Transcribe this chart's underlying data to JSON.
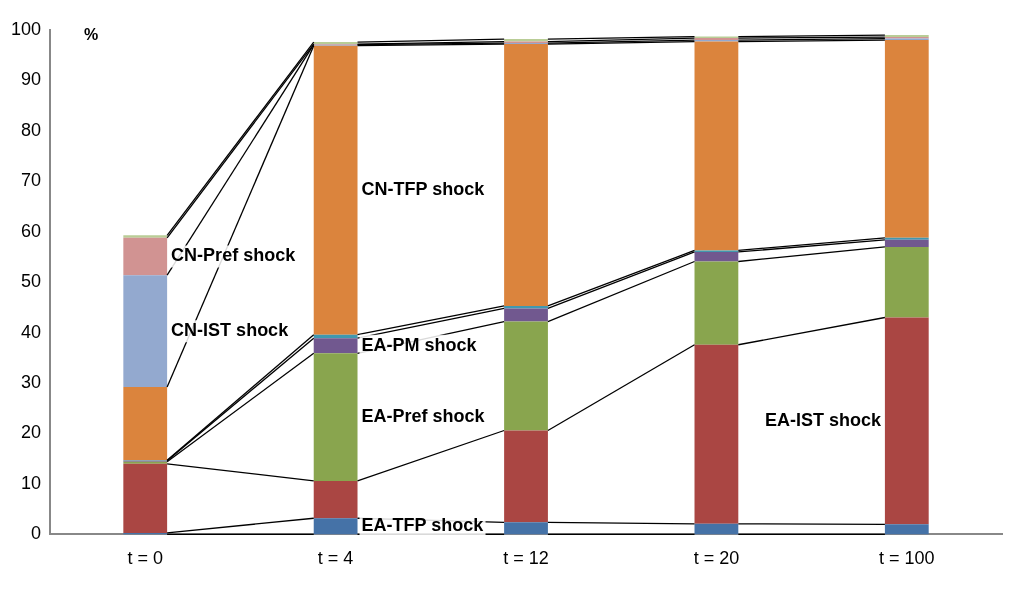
{
  "chart_data": {
    "type": "bar",
    "stacked": true,
    "ylabel": "%",
    "categories": [
      "t = 0",
      "t = 4",
      "t = 12",
      "t = 20",
      "t = 100"
    ],
    "ylim": [
      0,
      100
    ],
    "yticks": [
      0,
      10,
      20,
      30,
      40,
      50,
      60,
      70,
      80,
      90,
      100
    ],
    "grid": false,
    "legend": false,
    "series": [
      {
        "name": "EA-TFP shock",
        "color": "#4572a7",
        "values": [
          0.3,
          3.2,
          2.4,
          2.1,
          2.0
        ]
      },
      {
        "name": "EA-IST shock",
        "color": "#aa4643",
        "values": [
          13.7,
          7.4,
          18.2,
          35.5,
          41.0
        ]
      },
      {
        "name": "EA-Pref shock",
        "color": "#89a54e",
        "values": [
          0.4,
          25.3,
          21.6,
          16.5,
          14.0
        ]
      },
      {
        "name": "EA-PM shock",
        "color": "#71588f",
        "values": [
          0.2,
          3.0,
          2.6,
          1.9,
          1.4
        ]
      },
      {
        "color": "#4198af",
        "values": [
          0.1,
          0.7,
          0.5,
          0.3,
          0.4
        ]
      },
      {
        "name": "CN-TFP shock",
        "color": "#db843d",
        "values": [
          14.5,
          57.3,
          51.9,
          41.4,
          39.2
        ]
      },
      {
        "name": "CN-IST shock",
        "color": "#93a9cf",
        "values": [
          22.2,
          0.2,
          0.2,
          0.3,
          0.3
        ]
      },
      {
        "name": "CN-Pref shock",
        "color": "#d19392",
        "values": [
          7.4,
          0.1,
          0.3,
          0.4,
          0.3
        ]
      },
      {
        "color": "#b9cd96",
        "values": [
          0.5,
          0.4,
          0.5,
          0.3,
          0.4
        ]
      }
    ]
  }
}
